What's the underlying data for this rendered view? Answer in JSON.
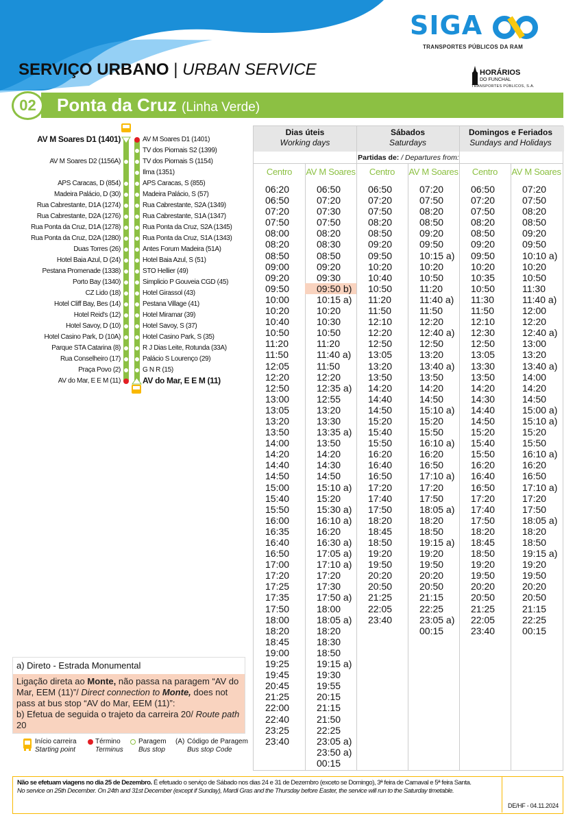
{
  "brand": {
    "logo_text": "SIGA",
    "tagline": "TRANSPORTES PÚBLICOS DA RAM",
    "colors": {
      "blue": "#1b8fd8",
      "yellow": "#f9c80e",
      "green": "#8cc043",
      "highlight": "#f9d3bf",
      "footer_border": "#f9b800"
    }
  },
  "operator": {
    "name": "HORÁRIOS",
    "sub": "DO FUNCHAL",
    "company": "TRANSPORTES PÚBLICOS, S.A."
  },
  "header": {
    "title_pt": "SERVIÇO URBANO",
    "separator": "|",
    "title_en": "URBAN SERVICE"
  },
  "line": {
    "number": "02",
    "name": "Ponta da Cruz",
    "variant": "(Linha Verde)"
  },
  "stops": {
    "outbound": [
      {
        "name": "AV M Soares D1 (1401)",
        "type": "start"
      },
      {
        "name": ""
      },
      {
        "name": "AV M Soares D2 (1156A)"
      },
      {
        "name": ""
      },
      {
        "name": "APS Caracas, D (854)"
      },
      {
        "name": "Madeira Palácio, D (30)"
      },
      {
        "name": "Rua Cabrestante, D1A (1274)"
      },
      {
        "name": "Rua Cabrestante, D2A (1276)"
      },
      {
        "name": "Rua Ponta da Cruz, D1A (1278)"
      },
      {
        "name": "Rua Ponta da Cruz, D2A (1280)"
      },
      {
        "name": "Duas Torres (26)"
      },
      {
        "name": "Hotel Baia Azul, D (24)"
      },
      {
        "name": "Pestana Promenade (1338)"
      },
      {
        "name": "Porto Bay (1340)"
      },
      {
        "name": "CZ Lido (18)"
      },
      {
        "name": "Hotel Cliff Bay, Bes (14)"
      },
      {
        "name": "Hotel Reid's (12)"
      },
      {
        "name": "Hotel Savoy, D (10)"
      },
      {
        "name": "Hotel Casino Park, D (10A)"
      },
      {
        "name": "Parque STA Catarina (8)"
      },
      {
        "name": "Rua Conselheiro (17)"
      },
      {
        "name": "Praça Povo (2)"
      },
      {
        "name": "AV do Mar, E E M (11)",
        "type": "end"
      }
    ],
    "inbound": [
      {
        "name": "AV M Soares D1 (1401)",
        "type": "end"
      },
      {
        "name": "TV dos Piornais S2 (1399)"
      },
      {
        "name": "TV dos Piornais S (1154)"
      },
      {
        "name": "Ilma (1351)"
      },
      {
        "name": "APS Caracas, S (855)"
      },
      {
        "name": "Madeira Palácio, S (57)"
      },
      {
        "name": "Rua Cabrestante, S2A (1349)"
      },
      {
        "name": "Rua Cabrestante, S1A (1347)"
      },
      {
        "name": "Rua Ponta da Cruz, S2A (1345)"
      },
      {
        "name": "Rua Ponta da Cruz, S1A (1343)"
      },
      {
        "name": "Antes Forum Madeira (51A)"
      },
      {
        "name": "Hotel Baia Azul, S (51)"
      },
      {
        "name": "STO Hellier (49)"
      },
      {
        "name": "Simplicio P Gouveia CGD (45)"
      },
      {
        "name": "Hotel Girassol (43)"
      },
      {
        "name": "Pestana Village (41)"
      },
      {
        "name": "Hotel Miramar (39)"
      },
      {
        "name": "Hotel Savoy, S (37)"
      },
      {
        "name": "Hotel Casino Park, S (35)"
      },
      {
        "name": "R J Dias Leite, Rotunda (33A)"
      },
      {
        "name": "Palácio S Lourenço (29)"
      },
      {
        "name": "G N R (15)"
      },
      {
        "name": "AV do Mar, E E M (11)",
        "type": "start"
      }
    ]
  },
  "timetable": {
    "departures_label": "Partidas de:",
    "departures_label_en": "/ Departures from:",
    "groups": [
      {
        "title": "Dias úteis",
        "subtitle": "Working days",
        "columns": [
          {
            "label": "Centro",
            "times": [
              "06:20",
              "06:50",
              "07:20",
              "07:50",
              "08:00",
              "08:20",
              "08:50",
              "09:00",
              "09:20",
              "09:50",
              "10:00",
              "10:20",
              "10:40",
              "10:50",
              "11:20",
              "11:50",
              "12:05",
              "12:20",
              "12:50",
              "13:00",
              "13:05",
              "13:20",
              "13:50",
              "14:00",
              "14:20",
              "14:40",
              "14:50",
              "15:00",
              "15:40",
              "15:50",
              "16:00",
              "16:35",
              "16:40",
              "16:50",
              "17:00",
              "17:20",
              "17:25",
              "17:35",
              "17:50",
              "18:00",
              "18:20",
              "18:45",
              "19:00",
              "19:25",
              "19:45",
              "20:45",
              "21:25",
              "22:00",
              "22:40",
              "23:25",
              "23:40"
            ]
          },
          {
            "label": "AV M Soares",
            "highlight": [
              "09:50 b)"
            ],
            "times": [
              "06:50",
              "07:20",
              "07:30",
              "07:50",
              "08:20",
              "08:30",
              "08:50",
              "09:20",
              "09:30",
              "09:50 b)",
              "10:15 a)",
              "10:20",
              "10:30",
              "10:50",
              "11:20",
              "11:40 a)",
              "11:50",
              "12:20",
              "12:35 a)",
              "12:55",
              "13:20",
              "13:30",
              "13:35 a)",
              "13:50",
              "14:20",
              "14:30",
              "14:50",
              "15:10 a)",
              "15:20",
              "15:30 a)",
              "16:10 a)",
              "16:20",
              "16:30 a)",
              "17:05 a)",
              "17:10 a)",
              "17:20",
              "17:30",
              "17:50 a)",
              "18:00",
              "18:05 a)",
              "18:20",
              "18:30",
              "18:50",
              "19:15 a)",
              "19:30",
              "19:55",
              "20:15",
              "21:15",
              "21:50",
              "22:25",
              "23:05 a)",
              "23:50 a)",
              "00:15"
            ]
          }
        ]
      },
      {
        "title": "Sábados",
        "subtitle": "Saturdays",
        "columns": [
          {
            "label": "Centro",
            "times": [
              "06:50",
              "07:20",
              "07:50",
              "08:20",
              "08:50",
              "09:20",
              "09:50",
              "10:20",
              "10:40",
              "10:50",
              "11:20",
              "11:50",
              "12:10",
              "12:20",
              "12:50",
              "13:05",
              "13:20",
              "13:50",
              "14:20",
              "14:40",
              "14:50",
              "15:20",
              "15:40",
              "15:50",
              "16:20",
              "16:40",
              "16:50",
              "17:20",
              "17:40",
              "17:50",
              "18:20",
              "18:45",
              "18:50",
              "19:20",
              "19:50",
              "20:20",
              "20:50",
              "21:25",
              "22:05",
              "23:40"
            ]
          },
          {
            "label": "AV M Soares",
            "times": [
              "07:20",
              "07:50",
              "08:20",
              "08:50",
              "09:20",
              "09:50",
              "10:15 a)",
              "10:20",
              "10:50",
              "11:20",
              "11:40 a)",
              "11:50",
              "12:20",
              "12:40 a)",
              "12:50",
              "13:20",
              "13:40 a)",
              "13:50",
              "14:20",
              "14:50",
              "15:10 a)",
              "15:20",
              "15:50",
              "16:10 a)",
              "16:20",
              "16:50",
              "17:10 a)",
              "17:20",
              "17:50",
              "18:05 a)",
              "18:20",
              "18:50",
              "19:15 a)",
              "19:20",
              "19:50",
              "20:20",
              "20:50",
              "21:15",
              "22:25",
              "23:05 a)",
              "00:15"
            ]
          }
        ]
      },
      {
        "title": "Domingos e Feriados",
        "subtitle": "Sundays and Holidays",
        "columns": [
          {
            "label": "Centro",
            "times": [
              "06:50",
              "07:20",
              "07:50",
              "08:20",
              "08:50",
              "09:20",
              "09:50",
              "10:20",
              "10:35",
              "10:50",
              "11:30",
              "11:50",
              "12:10",
              "12:30",
              "12:50",
              "13:05",
              "13:30",
              "13:50",
              "14:20",
              "14:30",
              "14:40",
              "14:50",
              "15:20",
              "15:40",
              "15:50",
              "16:20",
              "16:40",
              "16:50",
              "17:20",
              "17:40",
              "17:50",
              "18:20",
              "18:45",
              "18:50",
              "19:20",
              "19:50",
              "20:20",
              "20:50",
              "21:25",
              "22:05",
              "23:40"
            ]
          },
          {
            "label": "AV M Soares",
            "times": [
              "07:20",
              "07:50",
              "08:20",
              "08:50",
              "09:20",
              "09:50",
              "10:10 a)",
              "10:20",
              "10:50",
              "11:30",
              "11:40 a)",
              "12:00",
              "12:20",
              "12:40 a)",
              "13:00",
              "13:20",
              "13:40 a)",
              "14:00",
              "14:20",
              "14:50",
              "15:00 a)",
              "15:10 a)",
              "15:20",
              "15:50",
              "16:10 a)",
              "16:20",
              "16:50",
              "17:10 a)",
              "17:20",
              "17:50",
              "18:05 a)",
              "18:20",
              "18:50",
              "19:15 a)",
              "19:20",
              "19:50",
              "20:20",
              "20:50",
              "21:15",
              "22:25",
              "00:15"
            ]
          }
        ]
      }
    ]
  },
  "notes": {
    "a_title": "a) Direto - Estrada Monumental",
    "a_text_1": "Ligação direta ao ",
    "a_bold_1": "Monte,",
    "a_text_2": " não passa na paragem “AV do Mar, EEM (11)”/ ",
    "a_italic": "Direct connection to ",
    "a_bold_2": "Monte,",
    "a_text_3": " does not pass at bus stop “AV do Mar, EEM (11)”:",
    "b_text": "b) Efetua de seguida o trajeto da carreira 20/ ",
    "b_italic": "Route path",
    "b_end": " 20"
  },
  "legend": [
    {
      "icon": "bus-icon",
      "label": "Início carreira",
      "label_en": "Starting point"
    },
    {
      "icon": "red-dot-icon",
      "label": "Término",
      "label_en": "Terminus"
    },
    {
      "icon": "green-circle-icon",
      "label": "Paragem",
      "label_en": "Bus stop"
    },
    {
      "icon": "(A)",
      "label": "Código de Paragem",
      "label_en": "Bus stop Code"
    }
  ],
  "footer": {
    "pt_bold": "Não se efetuam viagens no dia 25 de Dezembro.",
    "pt_rest": " É efetuado o serviço de Sábado nos dias 24 e 31 de Dezembro (exceto se Domingo), 3ª feira de Carnaval e 5ª feira Santa.",
    "en": "No service on 25th December. On 24th and 31st December (except if Sunday), Mardi Gras and the Thursday before Easter, the service will run to the Saturday timetable.",
    "code": "DE/HF - 04.11.2024"
  }
}
